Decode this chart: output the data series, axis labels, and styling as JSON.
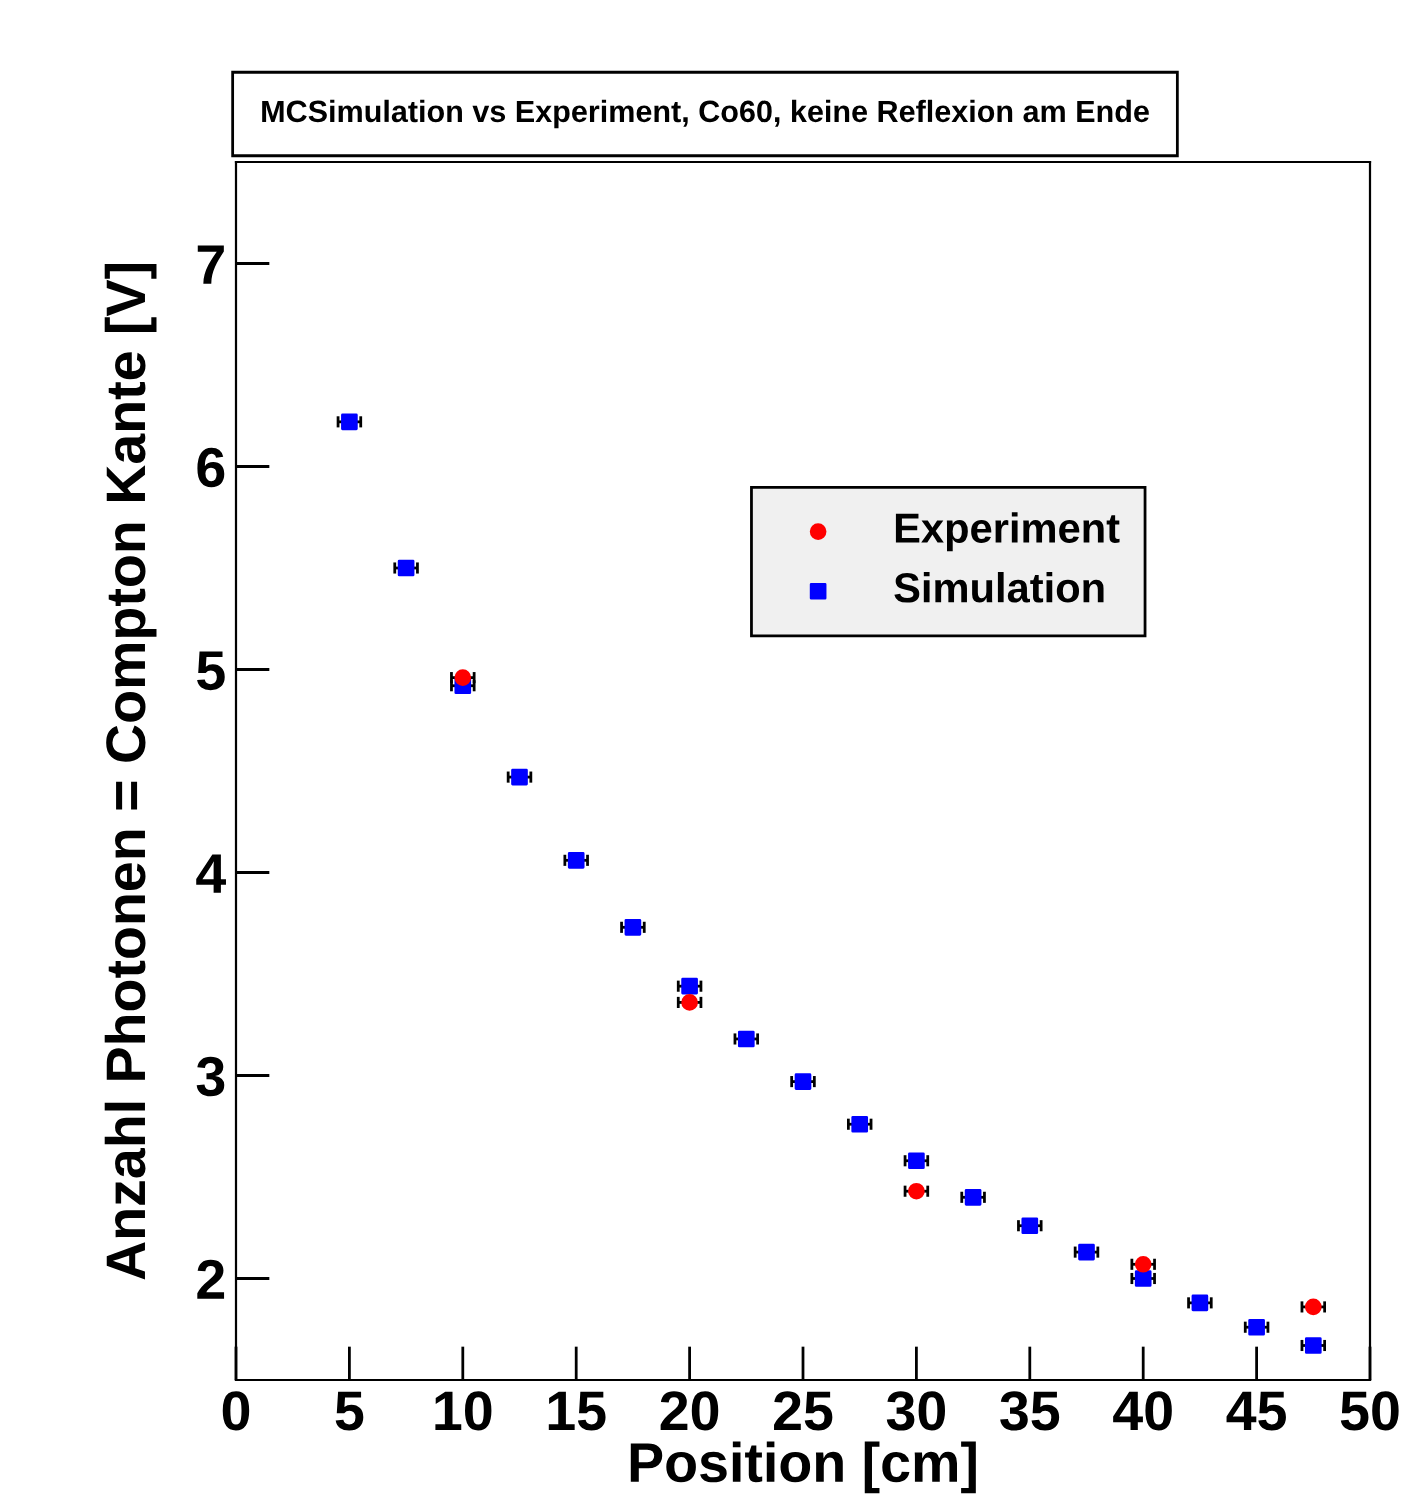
{
  "chart_data": {
    "type": "scatter",
    "title": "MCSimulation vs Experiment, Co60, keine Reflexion am Ende",
    "xlabel": "Position [cm]",
    "ylabel": "Anzahl Photonen = Compton Kante [V]",
    "xlim": [
      0,
      50
    ],
    "xticks": [
      0,
      5,
      10,
      15,
      20,
      25,
      30,
      35,
      40,
      45,
      50
    ],
    "ylim": [
      1.5,
      7.5
    ],
    "yticks": [
      2,
      3,
      4,
      5,
      6,
      7
    ],
    "grid": false,
    "legend": "top right",
    "series": [
      {
        "name": "Experiment",
        "color": "#ff0000",
        "marker": "circle",
        "x": [
          10,
          20,
          30,
          40,
          47.5
        ],
        "values": [
          4.96,
          3.36,
          2.43,
          2.07,
          1.86
        ],
        "xerrors": [
          0.5,
          0.5,
          0.5,
          0.5,
          0.5
        ]
      },
      {
        "name": "Simulation",
        "color": "#0000ff",
        "marker": "square",
        "x": [
          5,
          7.5,
          10,
          12.5,
          15,
          17.5,
          20,
          22.5,
          25,
          27.5,
          30,
          32.5,
          35,
          37.5,
          40,
          42.5,
          45,
          47.5
        ],
        "values": [
          6.22,
          5.5,
          4.92,
          4.47,
          4.06,
          3.73,
          3.44,
          3.18,
          2.97,
          2.76,
          2.58,
          2.4,
          2.26,
          2.13,
          2.0,
          1.88,
          1.76,
          1.67
        ],
        "xerrors": [
          0.5,
          0.5,
          0.5,
          0.5,
          0.5,
          0.5,
          0.5,
          0.5,
          0.5,
          0.5,
          0.5,
          0.5,
          0.5,
          0.5,
          0.5,
          0.5,
          0.5,
          0.5
        ]
      }
    ]
  }
}
